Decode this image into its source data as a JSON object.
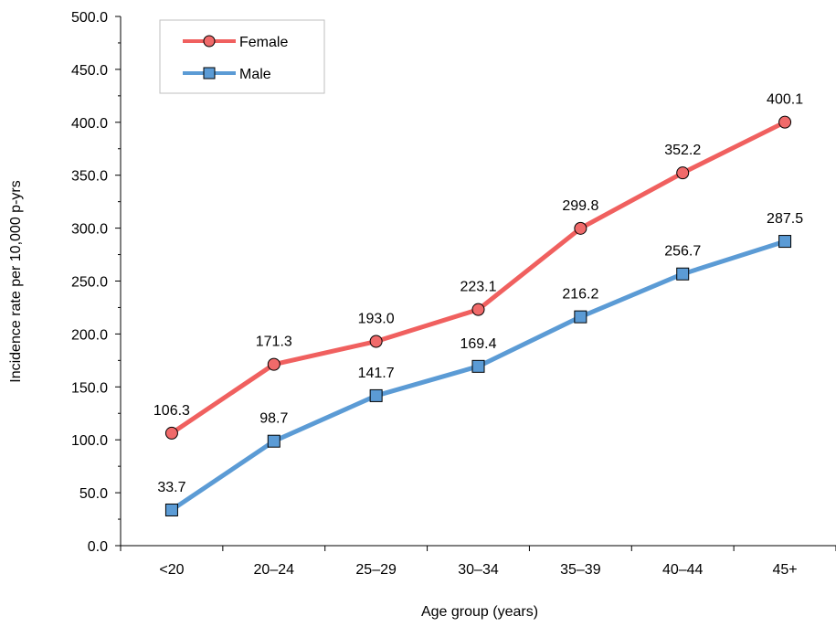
{
  "chart_data": {
    "type": "line",
    "title": "",
    "xlabel": "Age group (years)",
    "ylabel": "Incidence rate per 10,000 p-yrs",
    "categories": [
      "<20",
      "20–24",
      "25–29",
      "30–34",
      "35–39",
      "40–44",
      "45+"
    ],
    "ylim": [
      0,
      500
    ],
    "yticks": [
      "0.0",
      "50.0",
      "100.0",
      "150.0",
      "200.0",
      "250.0",
      "300.0",
      "350.0",
      "400.0",
      "450.0",
      "500.0"
    ],
    "grid": false,
    "legend_position": "top-left",
    "series": [
      {
        "name": "Female",
        "marker": "circle",
        "color": "#f0605f",
        "marker_fill": "#f06a6a",
        "values": [
          106.3,
          171.3,
          193.0,
          223.1,
          299.8,
          352.2,
          400.1
        ],
        "labels": [
          "106.3",
          "171.3",
          "193.0",
          "223.1",
          "299.8",
          "352.2",
          "400.1"
        ]
      },
      {
        "name": "Male",
        "marker": "square",
        "color": "#5b9bd5",
        "marker_fill": "#5b9bd5",
        "values": [
          33.7,
          98.7,
          141.7,
          169.4,
          216.2,
          256.7,
          287.5
        ],
        "labels": [
          "33.7",
          "98.7",
          "141.7",
          "169.4",
          "216.2",
          "256.7",
          "287.5"
        ]
      }
    ]
  }
}
